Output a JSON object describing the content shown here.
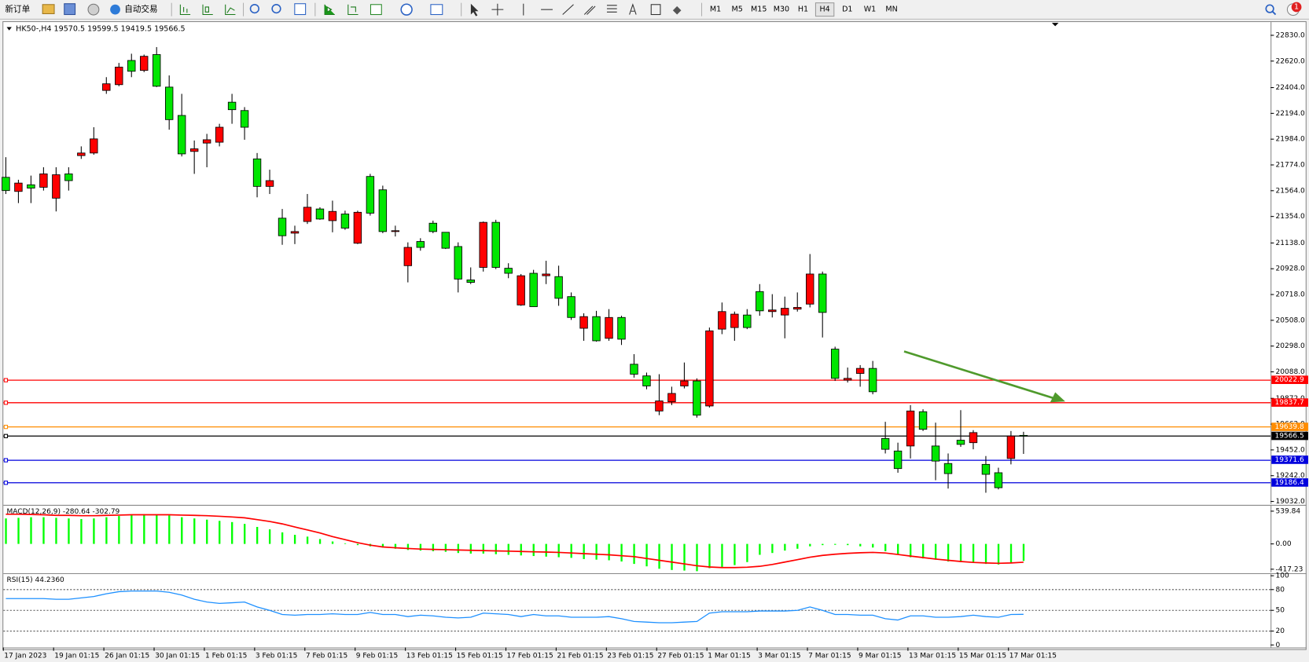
{
  "toolbar": {
    "new_order": "新订单",
    "auto_trading": "自动交易",
    "timeframes": [
      "M1",
      "M5",
      "M15",
      "M30",
      "H1",
      "H4",
      "D1",
      "W1",
      "MN"
    ],
    "selected_timeframe": "H4",
    "notifications": 1
  },
  "chart_data": [
    {
      "type": "candlestick",
      "symbol": "HK50-,H4",
      "categories": [
        "17 Jan 2023",
        null,
        null,
        null,
        "19 Jan 01:15",
        null,
        null,
        null,
        "26 Jan 01:15",
        null,
        null,
        null,
        "30 Jan 01:15",
        null,
        null,
        null,
        "1 Feb 01:15",
        null,
        null,
        null,
        "3 Feb 01:15",
        null,
        null,
        null,
        "7 Feb 01:15",
        null,
        null,
        null,
        "9 Feb 01:15",
        null,
        null,
        null,
        "13 Feb 01:15",
        null,
        null,
        null,
        "15 Feb 01:15",
        null,
        null,
        null,
        "17 Feb 01:15",
        null,
        null,
        null,
        "21 Feb 01:15",
        null,
        null,
        null,
        "23 Feb 01:15",
        null,
        null,
        null,
        "27 Feb 01:15",
        null,
        null,
        null,
        "1 Mar 01:15",
        null,
        null,
        null,
        "3 Mar 01:15",
        null,
        null,
        null,
        "7 Mar 01:15",
        null,
        null,
        null,
        "9 Mar 01:15",
        null,
        null,
        null,
        "13 Mar 01:15",
        null,
        null,
        null,
        "15 Mar 01:15",
        null,
        null,
        null,
        "17 Mar 01:15",
        null
      ],
      "open": [
        21673,
        21558,
        21612,
        21592,
        21503,
        21701,
        21850,
        21871,
        22381,
        22428,
        22625,
        22544,
        22673,
        22408,
        22177,
        21884,
        21952,
        21959,
        22285,
        22217,
        21823,
        21599,
        21340,
        21218,
        21313,
        21415,
        21320,
        21374,
        21136,
        21680,
        21571,
        21231,
        20953,
        21150,
        21299,
        21225,
        21109,
        20837,
        20939,
        21306,
        20932,
        20633,
        20891,
        20871,
        20864,
        20701,
        20443,
        20538,
        20361,
        20531,
        20150,
        20055,
        19769,
        19844,
        19973,
        20014,
        19810,
        20436,
        20449,
        20551,
        20742,
        20579,
        20551,
        20599,
        20640,
        20885,
        20273,
        20021,
        20075,
        20116,
        19545,
        19443,
        19484,
        19763,
        19484,
        19341,
        19531,
        19511,
        19334,
        19266,
        19382,
        19570.5
      ],
      "high": [
        21837,
        21653,
        21687,
        21755,
        21755,
        21755,
        21925,
        22081,
        22489,
        22605,
        22680,
        22673,
        22734,
        22503,
        22353,
        21973,
        22027,
        22109,
        22353,
        22245,
        21871,
        21735,
        21415,
        21279,
        21537,
        21429,
        21483,
        21401,
        21401,
        21701,
        21605,
        21279,
        21143,
        21177,
        21320,
        21225,
        21143,
        20939,
        21313,
        21327,
        20973,
        20885,
        20919,
        20993,
        20953,
        20735,
        20565,
        20585,
        20599,
        20545,
        20232,
        20082,
        20069,
        19967,
        20164,
        20035,
        20449,
        20653,
        20579,
        20599,
        20803,
        20721,
        20701,
        20735,
        21048,
        20905,
        20293,
        20123,
        20143,
        20177,
        19681,
        19511,
        19817,
        19783,
        19674,
        19423,
        19776,
        19613,
        19402,
        19307,
        19606,
        19599.5
      ],
      "low": [
        21537,
        21463,
        21463,
        21565,
        21395,
        21565,
        21823,
        21857,
        22353,
        22415,
        22489,
        22530,
        22408,
        22061,
        21843,
        21701,
        21755,
        21925,
        22109,
        21979,
        21510,
        21537,
        21123,
        21129,
        21293,
        21327,
        21225,
        21245,
        21129,
        21361,
        21218,
        21191,
        20817,
        21075,
        21218,
        21089,
        20735,
        20803,
        20905,
        20925,
        20851,
        20626,
        20619,
        20803,
        20626,
        20511,
        20341,
        20334,
        20341,
        20307,
        20041,
        19946,
        19735,
        19817,
        19953,
        19715,
        19797,
        20395,
        20341,
        20436,
        20545,
        20531,
        20361,
        20579,
        20613,
        20368,
        20014,
        20001,
        19967,
        19905,
        19423,
        19266,
        19382,
        19606,
        19205,
        19137,
        19477,
        19457,
        19103,
        19130,
        19334,
        19419.5
      ],
      "close": [
        21565,
        21626,
        21585,
        21701,
        21694,
        21646,
        21871,
        21986,
        22435,
        22571,
        22537,
        22659,
        22415,
        22143,
        21864,
        21905,
        21979,
        22081,
        22224,
        22081,
        21599,
        21646,
        21197,
        21231,
        21429,
        21333,
        21395,
        21259,
        21388,
        21381,
        21231,
        21238,
        21102,
        21102,
        21231,
        21095,
        20844,
        20817,
        21306,
        20939,
        20891,
        20871,
        20619,
        20885,
        20687,
        20531,
        20538,
        20341,
        20531,
        20354,
        20069,
        19973,
        19851,
        19912,
        20014,
        19735,
        20422,
        20579,
        20558,
        20449,
        20585,
        20592,
        20606,
        20613,
        20885,
        20572,
        20035,
        20035,
        20116,
        19926,
        19457,
        19300,
        19769,
        19620,
        19361,
        19259,
        19497,
        19593,
        19253,
        19144,
        19565,
        19566.5
      ],
      "up_color": "#ff0000",
      "down_color": "#00e600",
      "ylim": [
        19011,
        22938
      ],
      "yticks": [
        {
          "value": 22830,
          "label": "22830.0"
        },
        {
          "value": 22620,
          "label": "22620.0"
        },
        {
          "value": 22404,
          "label": "22404.0"
        },
        {
          "value": 22194,
          "label": "22194.0"
        },
        {
          "value": 21984,
          "label": "21984.0"
        },
        {
          "value": 21774,
          "label": "21774.0"
        },
        {
          "value": 21564,
          "label": "21564.0"
        },
        {
          "value": 21354,
          "label": "21354.0"
        },
        {
          "value": 21138,
          "label": "21138.0"
        },
        {
          "value": 20928,
          "label": "20928.0"
        },
        {
          "value": 20718,
          "label": "20718.0"
        },
        {
          "value": 20508,
          "label": "20508.0"
        },
        {
          "value": 20298,
          "label": "20298.0"
        },
        {
          "value": 20088,
          "label": "20088.0"
        },
        {
          "value": 19872,
          "label": "19872.0"
        },
        {
          "value": 19662,
          "label": "19662.0"
        },
        {
          "value": 19452,
          "label": "19452.0"
        },
        {
          "value": 19242,
          "label": "19242.0"
        },
        {
          "value": 19032,
          "label": "19032.0"
        }
      ],
      "hlines": [
        {
          "value": 20022.9,
          "color": "#ff0000"
        },
        {
          "value": 19837.7,
          "color": "#ff0000"
        },
        {
          "value": 19639.8,
          "color": "#ff8c00"
        },
        {
          "value": 19566.5,
          "color": "#000000"
        },
        {
          "value": 19371.6,
          "color": "#0000dd"
        },
        {
          "value": 19186.4,
          "color": "#0000dd"
        }
      ]
    },
    {
      "type": "macd",
      "title": "MACD(12,26,9) -280.64 -302.79",
      "histogram": [
        420,
        430,
        440,
        440,
        430,
        420,
        410,
        420,
        440,
        460,
        480,
        490,
        480,
        470,
        440,
        420,
        400,
        380,
        360,
        330,
        280,
        240,
        190,
        150,
        120,
        80,
        40,
        10,
        -20,
        -40,
        -60,
        -80,
        -100,
        -110,
        -120,
        -130,
        -150,
        -160,
        -160,
        -170,
        -180,
        -190,
        -200,
        -210,
        -220,
        -230,
        -250,
        -260,
        -270,
        -290,
        -330,
        -370,
        -410,
        -430,
        -440,
        -450,
        -400,
        -380,
        -350,
        -300,
        -180,
        -150,
        -110,
        -80,
        -40,
        -20,
        -15,
        -20,
        -40,
        -60,
        -120,
        -180,
        -220,
        -240,
        -260,
        -290,
        -300,
        -310,
        -330,
        -340,
        -320,
        -280.64
      ],
      "signal": [
        490,
        490,
        485,
        480,
        470,
        470,
        465,
        465,
        470,
        475,
        480,
        480,
        480,
        480,
        475,
        470,
        465,
        455,
        445,
        430,
        400,
        370,
        330,
        280,
        230,
        180,
        120,
        70,
        20,
        -20,
        -50,
        -65,
        -75,
        -85,
        -90,
        -95,
        -100,
        -105,
        -110,
        -115,
        -120,
        -125,
        -130,
        -135,
        -140,
        -150,
        -160,
        -170,
        -180,
        -195,
        -210,
        -240,
        -270,
        -300,
        -330,
        -360,
        -380,
        -390,
        -390,
        -385,
        -370,
        -340,
        -300,
        -260,
        -220,
        -190,
        -170,
        -155,
        -145,
        -140,
        -150,
        -175,
        -200,
        -225,
        -250,
        -270,
        -290,
        -305,
        -315,
        -320,
        -315,
        -302.79
      ],
      "histogram_color": "#00ff00",
      "signal_color": "#ff0000",
      "ylim": [
        -470,
        630
      ],
      "yticks": [
        539.84,
        {
          "value": 0,
          "label": "0.00"
        },
        -417.23
      ]
    },
    {
      "type": "line",
      "title": "RSI(15) 44.2360",
      "values": [
        67,
        67,
        67,
        67,
        66,
        66,
        68,
        70,
        74,
        77,
        78,
        78,
        78,
        76,
        72,
        66,
        62,
        60,
        61,
        62,
        55,
        50,
        44,
        43,
        44,
        44,
        45,
        44,
        44,
        47,
        44,
        44,
        41,
        43,
        42,
        40,
        39,
        40,
        46,
        45,
        44,
        41,
        44,
        42,
        42,
        40,
        40,
        40,
        41,
        38,
        34,
        33,
        32,
        32,
        33,
        34,
        46,
        48,
        48,
        48,
        49,
        49,
        49,
        50,
        55,
        50,
        44,
        44,
        43,
        43,
        38,
        36,
        42,
        42,
        40,
        40,
        41,
        43,
        41,
        40,
        44,
        44.236
      ],
      "color": "#1e90ff",
      "ylim": [
        0,
        100
      ],
      "yticks": [
        100,
        80,
        50,
        20,
        0
      ],
      "levels": [
        80,
        50,
        20
      ]
    }
  ]
}
